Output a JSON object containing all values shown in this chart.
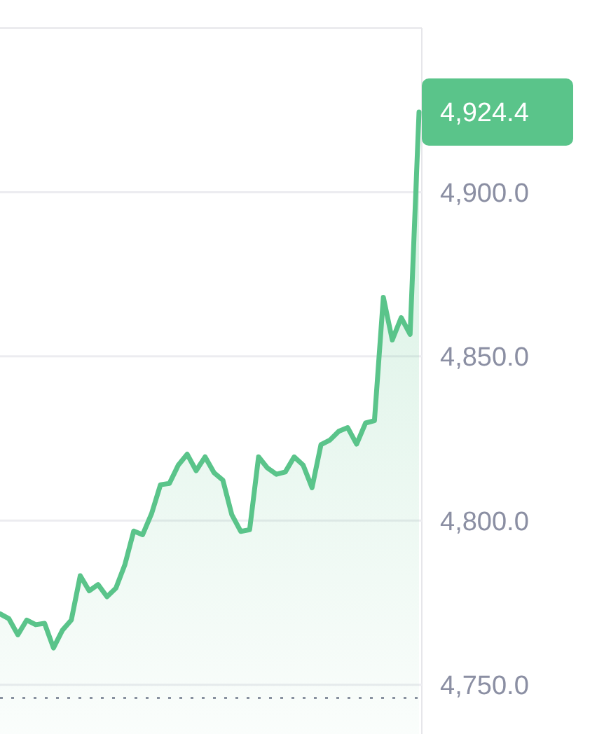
{
  "chart_data": {
    "type": "area",
    "categories": [
      null,
      null,
      null,
      null,
      null,
      null,
      null,
      null,
      null,
      null,
      null,
      null,
      null,
      null,
      null,
      null,
      null,
      null,
      null,
      null,
      null,
      null,
      null,
      null,
      null,
      null,
      null,
      null,
      null,
      null,
      null,
      null,
      null,
      null,
      null,
      null,
      null,
      null,
      null,
      null,
      null,
      null,
      null,
      null,
      null,
      null,
      null,
      null
    ],
    "series": [
      {
        "color": "#5ac48a",
        "values": [
          4771.6,
          4770.1,
          4765.2,
          4769.7,
          4768.3,
          4768.7,
          4761.2,
          4766.6,
          4769.7,
          4783.2,
          4778.6,
          4780.5,
          4776.8,
          4779.4,
          4786.5,
          4796.8,
          4795.7,
          4802.1,
          4810.9,
          4811.3,
          4816.9,
          4820.2,
          4815.2,
          4819.4,
          4814.6,
          4812.3,
          4801.8,
          4796.7,
          4797.2,
          4819.4,
          4816,
          4814.1,
          4814.8,
          4819.4,
          4816.9,
          4810,
          4823.1,
          4824.5,
          4827.2,
          4828.3,
          4823.3,
          4829.7,
          4830.4,
          4868,
          4855,
          4861.8,
          4856.7,
          4924.4
        ]
      }
    ],
    "ylim": [
      4735,
      4950
    ],
    "yticks": [
      {
        "value": 4750,
        "label": "4,750.0"
      },
      {
        "value": 4800,
        "label": "4,800.0"
      },
      {
        "value": 4850,
        "label": "4,850.0"
      },
      {
        "value": 4900,
        "label": "4,900.0"
      }
    ],
    "grid": "y",
    "ref_lines": [
      {
        "axis": "y",
        "value": 4746,
        "color": "#8a8fa0",
        "line_style": "dotted"
      }
    ],
    "annotations": [
      "4,924.4"
    ]
  }
}
